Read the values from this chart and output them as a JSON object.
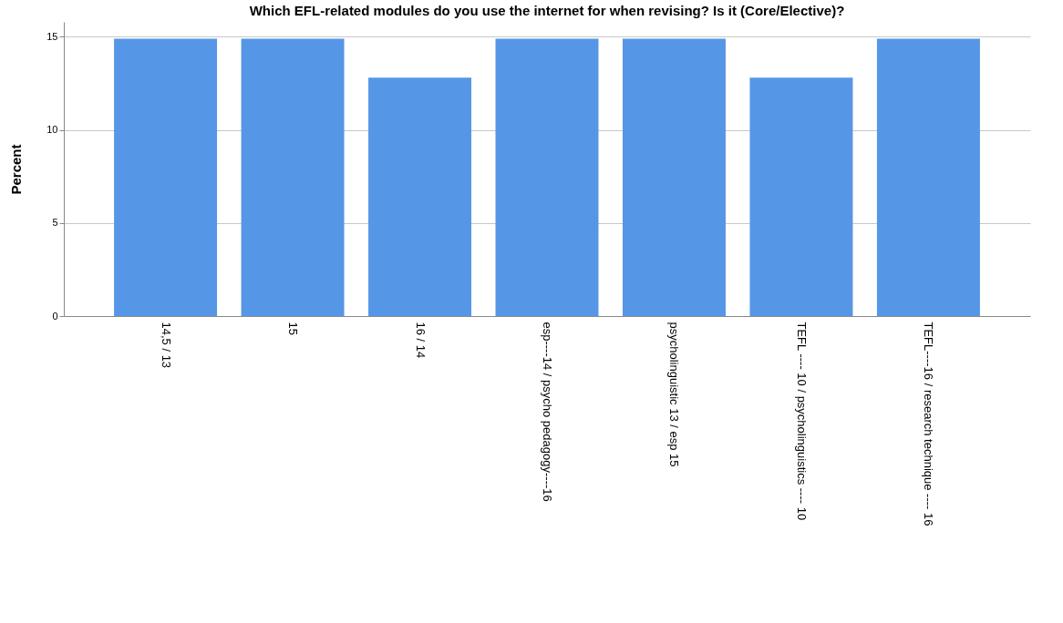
{
  "chart_data": {
    "type": "bar",
    "title": "Which EFL-related modules do you use the internet for when revising? Is it (Core/Elective)?",
    "ylabel": "Percent",
    "categories": [
      "14,5 / 13",
      "15",
      "16  /  14",
      "esp----14 / psycho pedagogy----16",
      "psycholinguistic 13 / esp 15",
      "TEFL ---- 10 / psycholinguistics ---- 10",
      "TEFL----16 / research technique ---- 16"
    ],
    "values": [
      14.9,
      14.9,
      12.8,
      14.9,
      14.9,
      12.8,
      14.9
    ],
    "color": "#5596e6",
    "ylim": [
      0,
      15.8
    ],
    "yticks": [
      0,
      5,
      10,
      15
    ],
    "grid": "y"
  }
}
